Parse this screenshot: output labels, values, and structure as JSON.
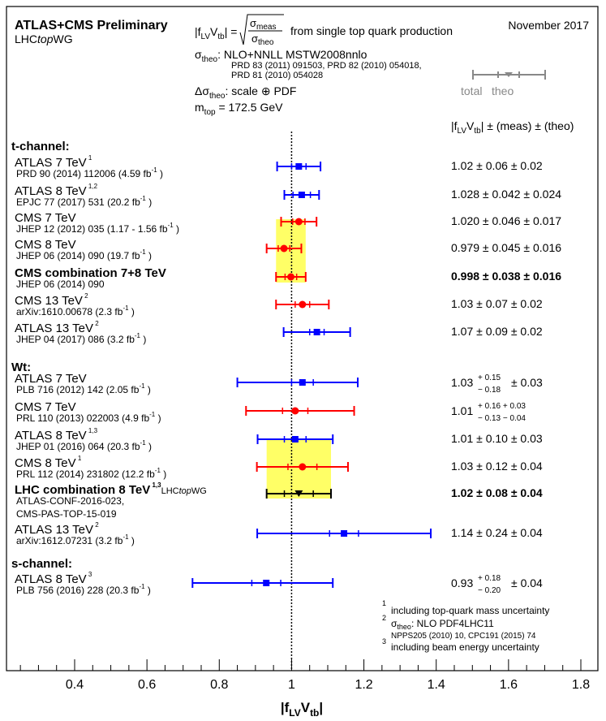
{
  "chart_data": {
    "type": "scatter",
    "title": "ATLAS+CMS Preliminary",
    "subtitle_pre": "LHC",
    "subtitle_it": "top",
    "subtitle_post": "WG",
    "date": "November 2017",
    "formula_lhs": "|f",
    "formula_lhs_sub": "LV",
    "formula_lhs_2": "V",
    "formula_lhs_sub2": "tb",
    "formula_lhs_end": "| =",
    "formula_num": "σ",
    "formula_num_sub": "meas",
    "formula_den": "σ",
    "formula_den_sub": "theo",
    "formula_text": "from single top quark production",
    "theo_line1_pre": "σ",
    "theo_line1_sub": "theo",
    "theo_line1_text": ": NLO+NNLL  MSTW2008nnlo",
    "theo_ref1": "PRD 83 (2011) 091503, PRD 82 (2010) 054018,",
    "theo_ref2": "PRD 81 (2010) 054028",
    "delta_pre": "Δσ",
    "delta_sub": "theo",
    "delta_text": ": scale ⊕ PDF",
    "mtop_pre": "m",
    "mtop_sub": "top",
    "mtop_text": " = 172.5 GeV",
    "key_total": "total",
    "key_theo": "theo",
    "column_header_pre": "|f",
    "column_header_sub": "LV",
    "column_header_mid": "V",
    "column_header_sub2": "tb",
    "column_header_post": "| ± (meas) ± (theo)",
    "xlabel": "|f",
    "xlabel_sub": "LV",
    "xlabel_mid": "V",
    "xlabel_sub2": "tb",
    "xlabel_end": "|",
    "xlim": [
      0.25,
      1.83
    ],
    "xticks": [
      "0.4",
      "0.6",
      "0.8",
      "1",
      "1.2",
      "1.4",
      "1.6",
      "1.8"
    ],
    "reference_line": 1.0,
    "colors": {
      "atlas": "#0000ff",
      "cms": "#ff0000",
      "combo": "#000000",
      "band": "#ffff66",
      "key": "#888888"
    },
    "sections": [
      {
        "label": "t-channel:"
      },
      {
        "label": "Wt:"
      },
      {
        "label": "s-channel:"
      }
    ],
    "entries": [
      {
        "name": "ATLAS 7 TeV",
        "sup": "1",
        "ref": "PRD 90 (2014) 112006  (4.59 fb",
        "ref_sup": "-1",
        "ref_end": ")",
        "value": "1.02 ± 0.06 ± 0.02",
        "exp": "ATLAS",
        "x": 1.02,
        "tot_lo": 0.06,
        "tot_hi": 0.06,
        "theo": 0.02
      },
      {
        "name": "ATLAS 8 TeV",
        "sup": "1,2",
        "ref": "EPJC 77 (2017) 531  (20.2 fb",
        "ref_sup": "-1",
        "ref_end": ")",
        "value": "1.028 ± 0.042 ± 0.024",
        "exp": "ATLAS",
        "x": 1.028,
        "tot_lo": 0.048,
        "tot_hi": 0.048,
        "theo": 0.024
      },
      {
        "name": "CMS 7 TeV",
        "sup": "",
        "ref": "JHEP 12 (2012) 035  (1.17 - 1.56 fb",
        "ref_sup": "-1",
        "ref_end": ")",
        "value": "1.020 ± 0.046 ± 0.017",
        "exp": "CMS",
        "x": 1.02,
        "tot_lo": 0.049,
        "tot_hi": 0.049,
        "theo": 0.017
      },
      {
        "name": "CMS 8 TeV",
        "sup": "",
        "ref": "JHEP 06 (2014) 090  (19.7 fb",
        "ref_sup": "-1",
        "ref_end": ")",
        "value": "0.979 ± 0.045 ± 0.016",
        "exp": "CMS",
        "x": 0.979,
        "tot_lo": 0.048,
        "tot_hi": 0.048,
        "theo": 0.016
      },
      {
        "name": "CMS combination 7+8 TeV",
        "sup": "",
        "ref": "JHEP 06 (2014) 090",
        "ref_sup": "",
        "ref_end": "",
        "value": "0.998 ± 0.038 ± 0.016",
        "exp": "CMS",
        "bold": true,
        "x": 0.998,
        "tot_lo": 0.041,
        "tot_hi": 0.041,
        "theo": 0.016
      },
      {
        "name": "CMS 13 TeV",
        "sup": "2",
        "ref": "arXiv:1610.00678  (2.3 fb",
        "ref_sup": "-1",
        "ref_end": ")",
        "value": "1.03 ± 0.07 ± 0.02",
        "exp": "CMS",
        "x": 1.03,
        "tot_lo": 0.073,
        "tot_hi": 0.073,
        "theo": 0.02
      },
      {
        "name": "ATLAS 13 TeV",
        "sup": "2",
        "ref": "JHEP 04 (2017) 086  (3.2 fb",
        "ref_sup": "-1",
        "ref_end": ")",
        "value": "1.07 ± 0.09 ± 0.02",
        "exp": "ATLAS",
        "x": 1.07,
        "tot_lo": 0.092,
        "tot_hi": 0.092,
        "theo": 0.02
      },
      {
        "name": "ATLAS 7 TeV",
        "sup": "",
        "ref": "PLB 716 (2012) 142  (2.05 fb",
        "ref_sup": "-1",
        "ref_end": ")",
        "value_base": "1.03",
        "value_up": "+ 0.15",
        "value_dn": "− 0.18",
        "value_rest": "± 0.03",
        "exp": "ATLAS",
        "x": 1.03,
        "tot_lo": 0.18,
        "tot_hi": 0.153,
        "theo": 0.03
      },
      {
        "name": "CMS 7 TeV",
        "sup": "",
        "ref": "PRL 110 (2013) 022003  (4.9 fb",
        "ref_sup": "-1",
        "ref_end": ")",
        "value_base": "1.01",
        "value_up": "+ 0.16  + 0.03",
        "value_dn": "− 0.13  − 0.04",
        "exp": "CMS",
        "x": 1.01,
        "tot_lo": 0.136,
        "tot_hi": 0.163,
        "theo": 0.035
      },
      {
        "name": "ATLAS 8 TeV",
        "sup": "1,3",
        "ref": "JHEP 01 (2016) 064  (20.3 fb",
        "ref_sup": "-1",
        "ref_end": ")",
        "value": "1.01 ± 0.10 ± 0.03",
        "exp": "ATLAS",
        "x": 1.01,
        "tot_lo": 0.104,
        "tot_hi": 0.104,
        "theo": 0.03
      },
      {
        "name": "CMS 8 TeV",
        "sup": "1",
        "ref": "PRL 112 (2014) 231802  (12.2 fb",
        "ref_sup": "-1",
        "ref_end": ")",
        "value": "1.03 ± 0.12 ± 0.04",
        "exp": "CMS",
        "x": 1.03,
        "tot_lo": 0.126,
        "tot_hi": 0.126,
        "theo": 0.04
      },
      {
        "name": "LHC combination 8 TeV",
        "sup": "1,3",
        "ref": "ATLAS-CONF-2016-023,",
        "ref2": "CMS-PAS-TOP-15-019",
        "ref_sup": "",
        "ref_end": "",
        "value": "1.02 ± 0.08 ± 0.04",
        "exp": "combo",
        "bold": true,
        "tag_pre": "LHC",
        "tag_it": "top",
        "tag_post": "WG",
        "x": 1.02,
        "tot_lo": 0.089,
        "tot_hi": 0.089,
        "theo": 0.04
      },
      {
        "name": "ATLAS 13 TeV",
        "sup": "2",
        "ref": "arXiv:1612.07231  (3.2 fb",
        "ref_sup": "-1",
        "ref_end": ")",
        "value": "1.14 ± 0.24 ± 0.04",
        "exp": "ATLAS",
        "x": 1.145,
        "tot_lo": 0.24,
        "tot_hi": 0.24,
        "theo": 0.04
      },
      {
        "name": "ATLAS 8 TeV",
        "sup": "3",
        "ref": "PLB 756 (2016) 228  (20.3 fb",
        "ref_sup": "-1",
        "ref_end": ")",
        "value_base": "0.93",
        "value_up": "+ 0.18",
        "value_dn": "− 0.20",
        "value_rest": "± 0.04",
        "exp": "ATLAS",
        "x": 0.93,
        "tot_lo": 0.204,
        "tot_hi": 0.184,
        "theo": 0.04
      }
    ],
    "bands": [
      {
        "x": 0.998,
        "half": 0.041
      },
      {
        "x": 1.02,
        "half": 0.089
      }
    ],
    "footnotes": [
      {
        "num": "1",
        "text": "including top-quark mass uncertainty"
      },
      {
        "num": "2",
        "text_pre": "σ",
        "text_sub": "theo",
        "text": ": NLO PDF4LHC11",
        "text2": "NPPS205 (2010) 10, CPC191 (2015) 74"
      },
      {
        "num": "3",
        "text": "including beam energy uncertainty"
      }
    ]
  }
}
